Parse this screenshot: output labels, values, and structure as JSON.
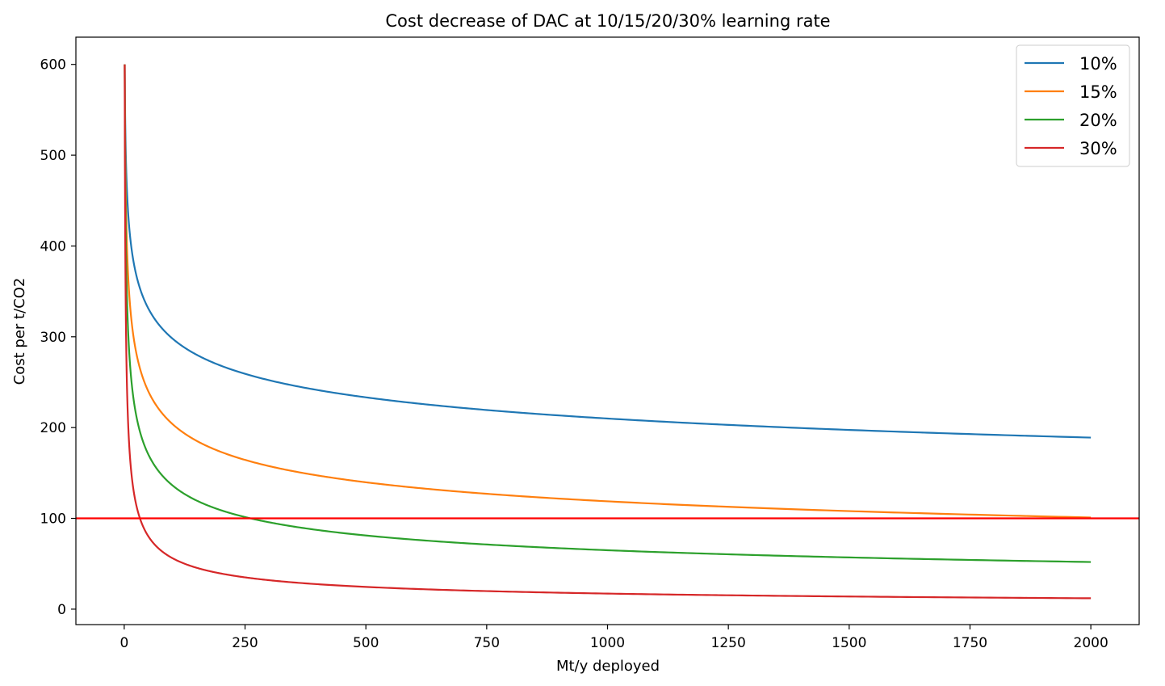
{
  "chart_data": {
    "type": "line",
    "title": "Cost decrease of DAC at 10/15/20/30% learning rate",
    "xlabel": "Mt/y deployed",
    "ylabel": "Cost per t/CO2",
    "xlim": [
      -100,
      2100
    ],
    "ylim": [
      -17,
      630
    ],
    "xticks": [
      0,
      250,
      500,
      750,
      1000,
      1250,
      1500,
      1750,
      2000
    ],
    "yticks": [
      0,
      100,
      200,
      300,
      400,
      500,
      600
    ],
    "grid": false,
    "legend_position": "top-right",
    "initial_cost": 600,
    "x_range": [
      1,
      2000
    ],
    "series": [
      {
        "name": "10%",
        "learning_rate": 0.1,
        "color": "#1f77b4",
        "values": [
          [
            1,
            600
          ],
          [
            10,
            423
          ],
          [
            50,
            330
          ],
          [
            100,
            298
          ],
          [
            250,
            260
          ],
          [
            500,
            234
          ],
          [
            750,
            220
          ],
          [
            1000,
            210
          ],
          [
            1250,
            203
          ],
          [
            1500,
            197
          ],
          [
            1750,
            192
          ],
          [
            2000,
            188
          ]
        ]
      },
      {
        "name": "15%",
        "learning_rate": 0.15,
        "color": "#ff7f0e",
        "values": [
          [
            1,
            600
          ],
          [
            10,
            348
          ],
          [
            50,
            237
          ],
          [
            100,
            201
          ],
          [
            250,
            162
          ],
          [
            500,
            137
          ],
          [
            750,
            125
          ],
          [
            1000,
            116
          ],
          [
            1250,
            110
          ],
          [
            1500,
            106
          ],
          [
            1750,
            102
          ],
          [
            2000,
            100
          ]
        ]
      },
      {
        "name": "20%",
        "learning_rate": 0.2,
        "color": "#2ca02c",
        "values": [
          [
            1,
            600
          ],
          [
            10,
            286
          ],
          [
            50,
            167
          ],
          [
            100,
            134
          ],
          [
            250,
            99
          ],
          [
            500,
            79
          ],
          [
            750,
            70
          ],
          [
            1000,
            64
          ],
          [
            1250,
            59
          ],
          [
            1500,
            56
          ],
          [
            1750,
            54
          ],
          [
            2000,
            51
          ]
        ]
      },
      {
        "name": "30%",
        "learning_rate": 0.3,
        "color": "#d62728",
        "values": [
          [
            1,
            600
          ],
          [
            10,
            183
          ],
          [
            50,
            76
          ],
          [
            100,
            56
          ],
          [
            250,
            35
          ],
          [
            500,
            24
          ],
          [
            750,
            20
          ],
          [
            1000,
            17
          ],
          [
            1250,
            15
          ],
          [
            1500,
            13
          ],
          [
            1750,
            12
          ],
          [
            2000,
            11
          ]
        ]
      }
    ],
    "reference_line": {
      "y": 100,
      "color": "#ff0000"
    }
  }
}
